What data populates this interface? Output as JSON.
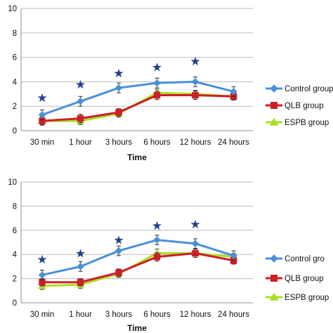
{
  "colors": {
    "control": "#4a90d9",
    "qlb": "#cc1f26",
    "espb": "#a8e022",
    "star": "#1f3f8a",
    "grid": "#bdbdbd",
    "axis": "#8c8c8c",
    "error": "#333333"
  },
  "chart_data": [
    {
      "type": "line",
      "categories": [
        "30 min",
        "1 hour",
        "3 hours",
        "6 hours",
        "12 hours",
        "24 hours"
      ],
      "xlabel": "Time",
      "ylabel": "",
      "ylim": [
        0,
        10
      ],
      "yticks": [
        0,
        2,
        4,
        6,
        8,
        10
      ],
      "grid": "horizontal",
      "legend_position": "right",
      "series": [
        {
          "name": "Control group",
          "values": [
            1.3,
            2.4,
            3.5,
            3.9,
            4.0,
            3.2
          ],
          "errors": [
            0.4,
            0.4,
            0.4,
            0.4,
            0.4,
            0.4
          ]
        },
        {
          "name": "QLB group",
          "values": [
            0.8,
            1.0,
            1.5,
            2.9,
            2.9,
            2.8
          ],
          "errors": [
            0.35,
            0.35,
            0.3,
            0.35,
            0.35,
            0.3
          ]
        },
        {
          "name": "ESPB group",
          "values": [
            0.8,
            0.8,
            1.4,
            3.1,
            3.0,
            2.8
          ],
          "errors": [
            0.3,
            0.3,
            0.3,
            0.3,
            0.3,
            0.3
          ]
        }
      ],
      "significance_markers": {
        "symbol": "★",
        "categories": [
          "30 min",
          "1 hour",
          "3 hours",
          "6 hours",
          "12 hours"
        ],
        "y": [
          2.7,
          3.8,
          4.7,
          5.2,
          5.7
        ]
      }
    },
    {
      "type": "line",
      "categories": [
        "30 min",
        "1 hour",
        "3 hours",
        "6 hours",
        "12 hours",
        "24 hours"
      ],
      "xlabel": "Time",
      "ylabel": "",
      "ylim": [
        0,
        10
      ],
      "yticks": [
        0,
        2,
        4,
        6,
        8,
        10
      ],
      "grid": "horizontal",
      "legend_position": "right",
      "series": [
        {
          "name": "Control gro",
          "values": [
            2.3,
            3.0,
            4.3,
            5.2,
            4.9,
            3.9
          ],
          "errors": [
            0.4,
            0.4,
            0.4,
            0.4,
            0.4,
            0.4
          ]
        },
        {
          "name": "QLB group",
          "values": [
            1.7,
            1.7,
            2.5,
            3.8,
            4.1,
            3.5
          ],
          "errors": [
            0.3,
            0.3,
            0.3,
            0.35,
            0.35,
            0.3
          ]
        },
        {
          "name": "ESPB group",
          "values": [
            1.4,
            1.5,
            2.4,
            4.1,
            4.1,
            3.8
          ],
          "errors": [
            0.3,
            0.3,
            0.3,
            0.35,
            0.35,
            0.3
          ]
        }
      ],
      "significance_markers": {
        "symbol": "★",
        "categories": [
          "30 min",
          "1 hour",
          "3 hours",
          "6 hours",
          "12 hours"
        ],
        "y": [
          3.6,
          4.1,
          5.2,
          6.4,
          6.5
        ]
      }
    }
  ]
}
